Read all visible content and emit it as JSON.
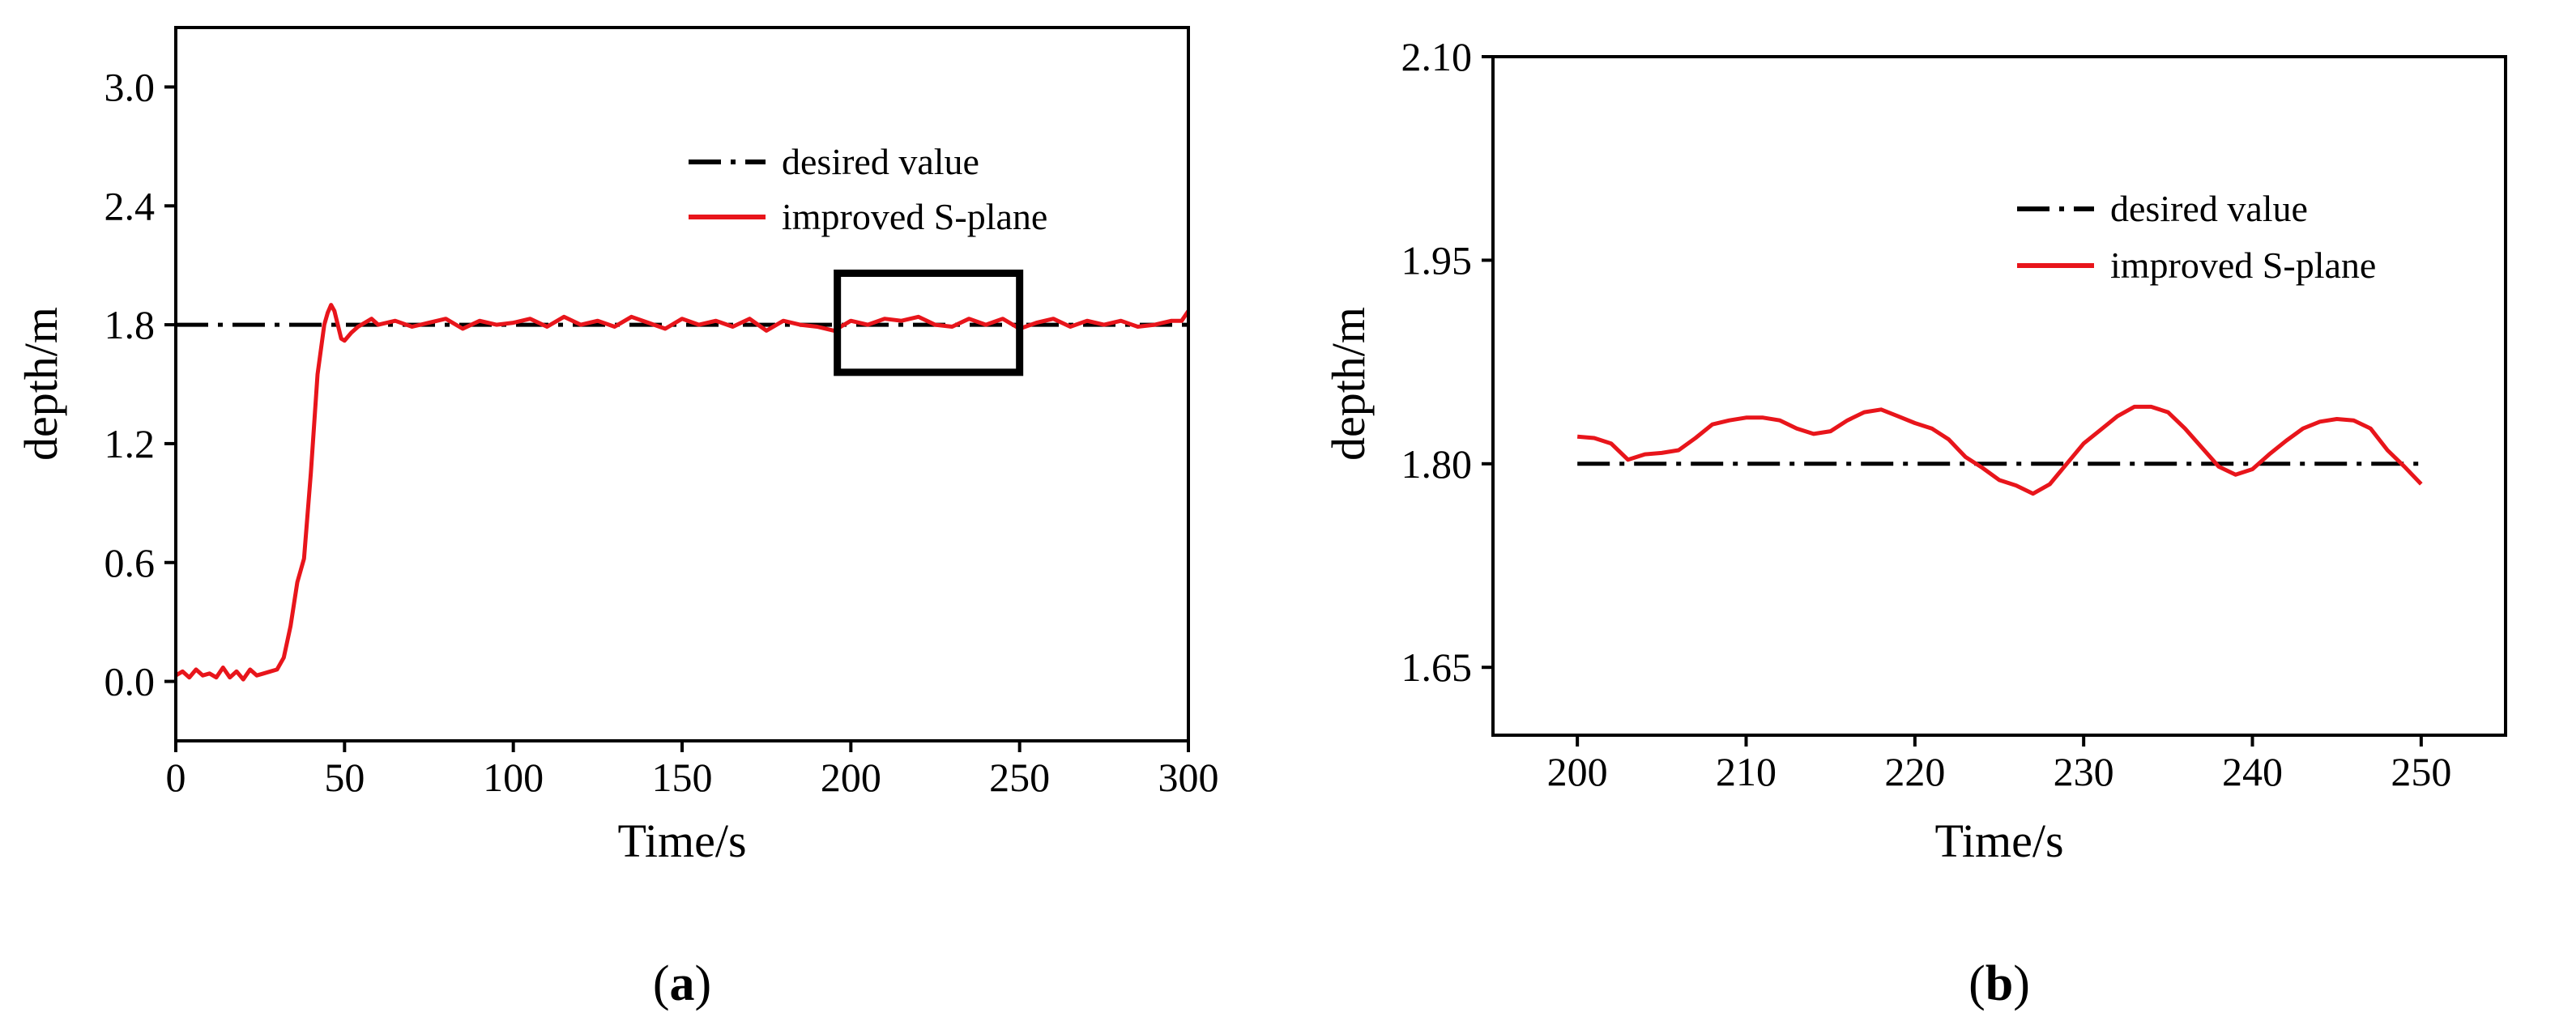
{
  "chart_data": [
    {
      "type": "line",
      "panel_label": "a",
      "panel_open": "(",
      "panel_close": ")",
      "xlabel": "Time/s",
      "ylabel": "depth/m",
      "xlim": [
        0,
        300
      ],
      "ylim": [
        -0.3,
        3.3
      ],
      "xticks": [
        0,
        50,
        100,
        150,
        200,
        250,
        300
      ],
      "xtick_labels": [
        "0",
        "50",
        "100",
        "150",
        "200",
        "250",
        "300"
      ],
      "yticks": [
        0.0,
        0.6,
        1.2,
        1.8,
        2.4,
        3.0
      ],
      "ytick_labels": [
        "0.0",
        "0.6",
        "1.2",
        "1.8",
        "2.4",
        "3.0"
      ],
      "legend_position": "top-right",
      "zoom_box": {
        "x": [
          196,
          250
        ],
        "y": [
          1.56,
          2.06
        ]
      },
      "series": [
        {
          "name": "desired value",
          "style": "dash-dot",
          "color": "#000000",
          "x": [
            0,
            300
          ],
          "y": [
            1.8,
            1.8
          ]
        },
        {
          "name": "improved S-plane",
          "style": "solid",
          "color": "#e8151b",
          "x": [
            0,
            2,
            4,
            6,
            8,
            10,
            12,
            14,
            16,
            18,
            20,
            22,
            24,
            26,
            28,
            30,
            32,
            34,
            36,
            38,
            40,
            42,
            44,
            45,
            46,
            47,
            48,
            49,
            50,
            52,
            54,
            56,
            58,
            60,
            65,
            70,
            75,
            80,
            85,
            90,
            95,
            100,
            105,
            110,
            115,
            120,
            125,
            130,
            135,
            140,
            145,
            150,
            155,
            160,
            165,
            170,
            175,
            180,
            185,
            190,
            195,
            200,
            205,
            210,
            215,
            220,
            225,
            230,
            235,
            240,
            245,
            250,
            255,
            260,
            265,
            270,
            275,
            280,
            285,
            290,
            295,
            298,
            300
          ],
          "y": [
            0.03,
            0.05,
            0.02,
            0.06,
            0.03,
            0.04,
            0.02,
            0.07,
            0.02,
            0.05,
            0.01,
            0.06,
            0.03,
            0.04,
            0.05,
            0.06,
            0.12,
            0.28,
            0.5,
            0.62,
            1.05,
            1.55,
            1.8,
            1.86,
            1.9,
            1.87,
            1.8,
            1.73,
            1.72,
            1.76,
            1.79,
            1.81,
            1.83,
            1.8,
            1.82,
            1.79,
            1.81,
            1.83,
            1.78,
            1.82,
            1.8,
            1.81,
            1.83,
            1.79,
            1.84,
            1.8,
            1.82,
            1.79,
            1.84,
            1.81,
            1.78,
            1.83,
            1.8,
            1.82,
            1.79,
            1.83,
            1.77,
            1.82,
            1.8,
            1.79,
            1.77,
            1.82,
            1.8,
            1.83,
            1.82,
            1.84,
            1.8,
            1.79,
            1.83,
            1.8,
            1.83,
            1.78,
            1.81,
            1.83,
            1.79,
            1.82,
            1.8,
            1.82,
            1.79,
            1.8,
            1.82,
            1.82,
            1.87
          ]
        }
      ]
    },
    {
      "type": "line",
      "panel_label": "b",
      "panel_open": "(",
      "panel_close": ")",
      "xlabel": "Time/s",
      "ylabel": "depth/m",
      "xlim": [
        195,
        255
      ],
      "ylim": [
        1.6,
        2.1
      ],
      "xticks": [
        200,
        210,
        220,
        230,
        240,
        250
      ],
      "xtick_labels": [
        "200",
        "210",
        "220",
        "230",
        "240",
        "250"
      ],
      "yticks": [
        1.65,
        1.8,
        1.95,
        2.1
      ],
      "ytick_labels": [
        "1.65",
        "1.80",
        "1.95",
        "2.10"
      ],
      "legend_position": "top-right",
      "series": [
        {
          "name": "desired value",
          "style": "dash-dot",
          "color": "#000000",
          "x": [
            200,
            250
          ],
          "y": [
            1.8,
            1.8
          ]
        },
        {
          "name": "improved S-plane",
          "style": "solid",
          "color": "#e8151b",
          "x": [
            200,
            201,
            202,
            203,
            204,
            205,
            206,
            207,
            208,
            209,
            210,
            211,
            212,
            213,
            214,
            215,
            216,
            217,
            218,
            219,
            220,
            221,
            222,
            223,
            224,
            225,
            226,
            227,
            228,
            229,
            230,
            231,
            232,
            233,
            234,
            235,
            236,
            237,
            238,
            239,
            240,
            241,
            242,
            243,
            244,
            245,
            246,
            247,
            248,
            249,
            250
          ],
          "y": [
            1.82,
            1.819,
            1.815,
            1.803,
            1.807,
            1.808,
            1.81,
            1.819,
            1.829,
            1.832,
            1.834,
            1.834,
            1.832,
            1.826,
            1.822,
            1.824,
            1.832,
            1.838,
            1.84,
            1.835,
            1.83,
            1.826,
            1.818,
            1.805,
            1.797,
            1.788,
            1.784,
            1.778,
            1.785,
            1.8,
            1.815,
            1.825,
            1.835,
            1.842,
            1.842,
            1.838,
            1.826,
            1.812,
            1.798,
            1.792,
            1.796,
            1.807,
            1.817,
            1.826,
            1.831,
            1.833,
            1.832,
            1.826,
            1.81,
            1.798,
            1.785
          ]
        }
      ]
    }
  ]
}
